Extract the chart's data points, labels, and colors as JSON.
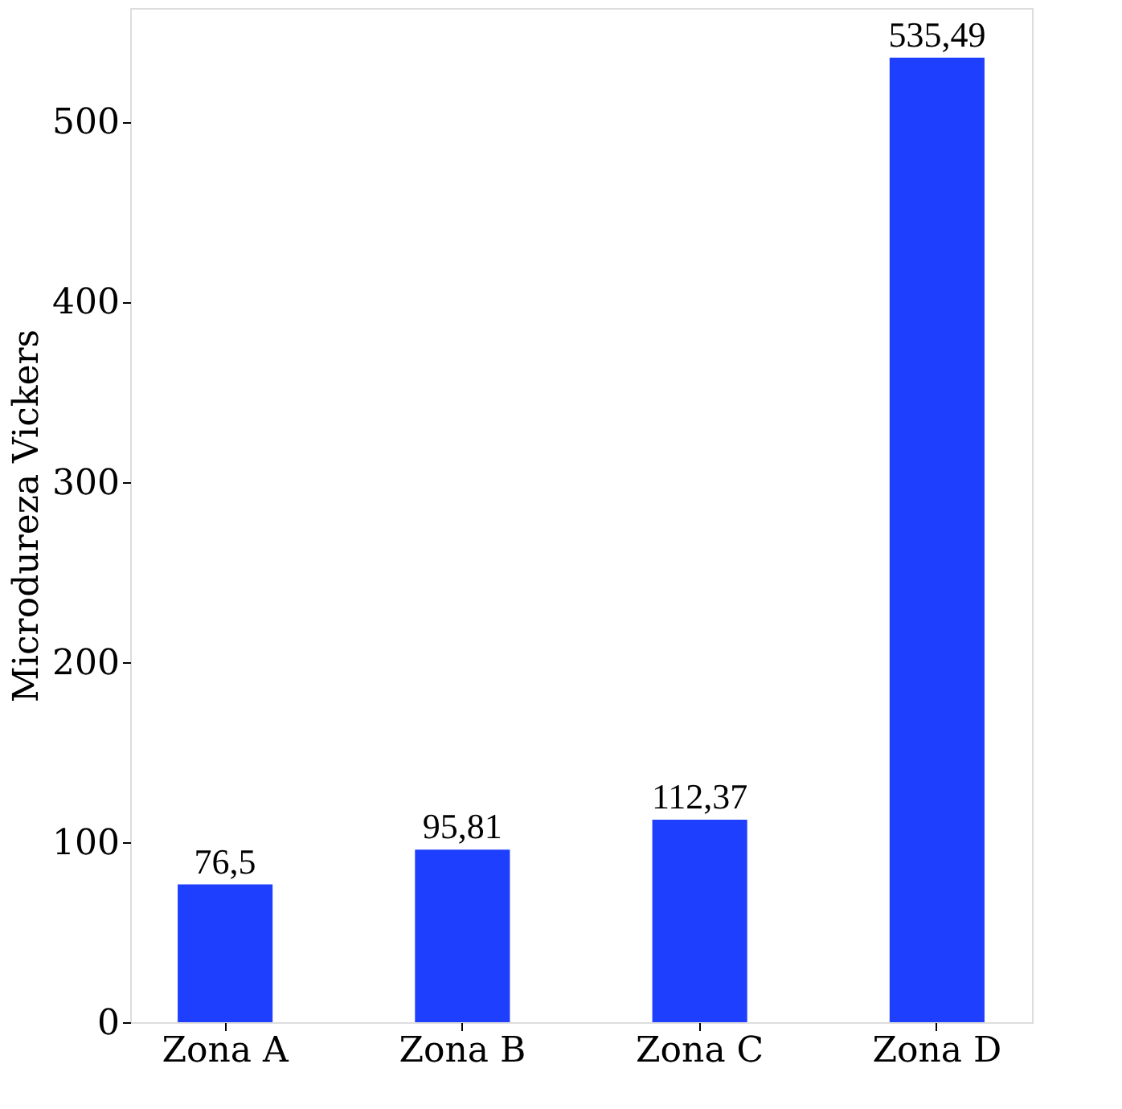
{
  "chart_data": {
    "type": "bar",
    "ylabel": "Microdureza Vickers",
    "categories": [
      "Zona A",
      "Zona B",
      "Zona C",
      "Zona D"
    ],
    "values": [
      76.5,
      95.81,
      112.37,
      535.49
    ],
    "value_labels": [
      "76,5",
      "95,81",
      "112,37",
      "535,49"
    ],
    "color": "#1f3fff",
    "ylim": [
      0,
      563
    ],
    "yticks": [
      0,
      100,
      200,
      300,
      400,
      500
    ],
    "grid": false
  }
}
